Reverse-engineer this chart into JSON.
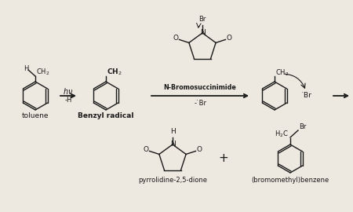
{
  "bg_color": "#ede8e0",
  "line_color": "#1a1a1a",
  "text_color": "#1a1a1a",
  "label_toluene": "toluene",
  "label_benzyl": "Benzyl radical",
  "label_nbs": "N-Bromosuccinimide",
  "label_minus_br": "- ̇Br",
  "label_pyrrolidine": "pyrrolidine-2,5-dione",
  "label_bromomethyl": "(bromomethyl)benzene"
}
